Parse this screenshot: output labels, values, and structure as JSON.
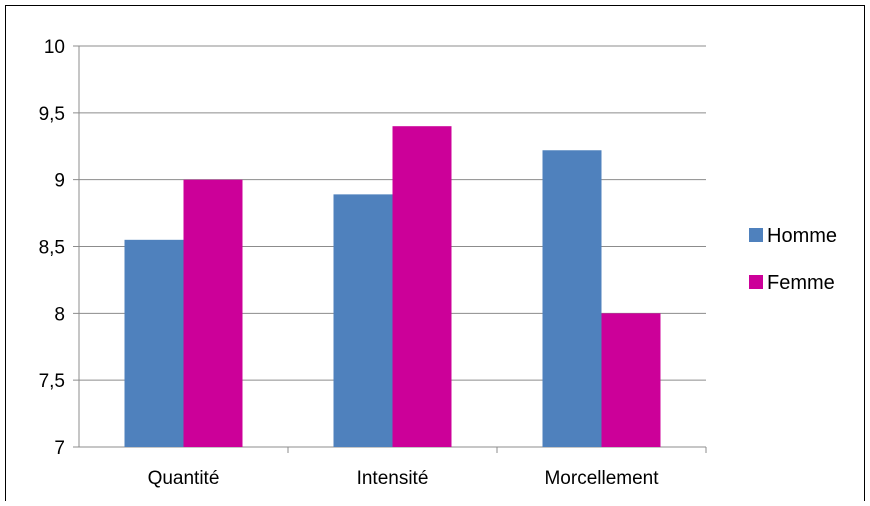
{
  "chart_data": {
    "type": "bar",
    "categories": [
      "Quantité",
      "Intensité",
      "Morcellement"
    ],
    "series": [
      {
        "name": "Homme",
        "values": [
          8.55,
          8.89,
          9.22
        ],
        "color": "#4F81BD"
      },
      {
        "name": "Femme",
        "values": [
          9.0,
          9.4,
          8.0
        ],
        "color": "#CC0099"
      }
    ],
    "ylim": [
      7,
      10
    ],
    "yticks": [
      7,
      7.5,
      8,
      8.5,
      9,
      9.5,
      10
    ],
    "ytick_labels": [
      "7",
      "7,5",
      "8",
      "8,5",
      "9",
      "9,5",
      "10"
    ],
    "grid": true,
    "legend_position": "right",
    "title": "",
    "xlabel": "",
    "ylabel": ""
  }
}
